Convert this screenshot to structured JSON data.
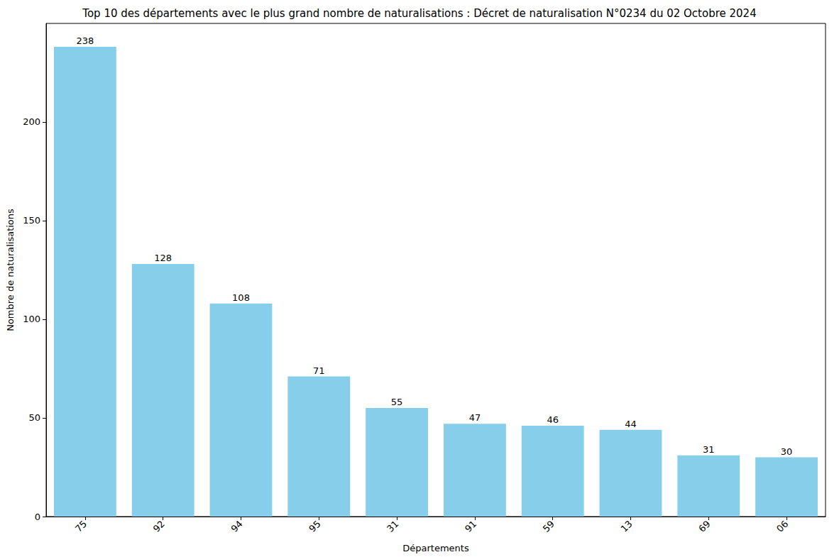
{
  "chart_data": {
    "type": "bar",
    "title": "Top 10 des départements avec le plus grand nombre de naturalisations : Décret de naturalisation N°0234 du 02 Octobre 2024",
    "x_label": "Départements",
    "y_label": "Nombre de naturalisations",
    "categories": [
      "75",
      "92",
      "94",
      "95",
      "31",
      "91",
      "59",
      "13",
      "69",
      "06"
    ],
    "values": [
      238,
      128,
      108,
      71,
      55,
      47,
      46,
      44,
      31,
      30
    ],
    "color": "#87ceeb",
    "ylim": [
      0,
      249.9
    ],
    "yticks": [
      0,
      50,
      100,
      150,
      200
    ],
    "grid": false,
    "data_labels": true
  }
}
